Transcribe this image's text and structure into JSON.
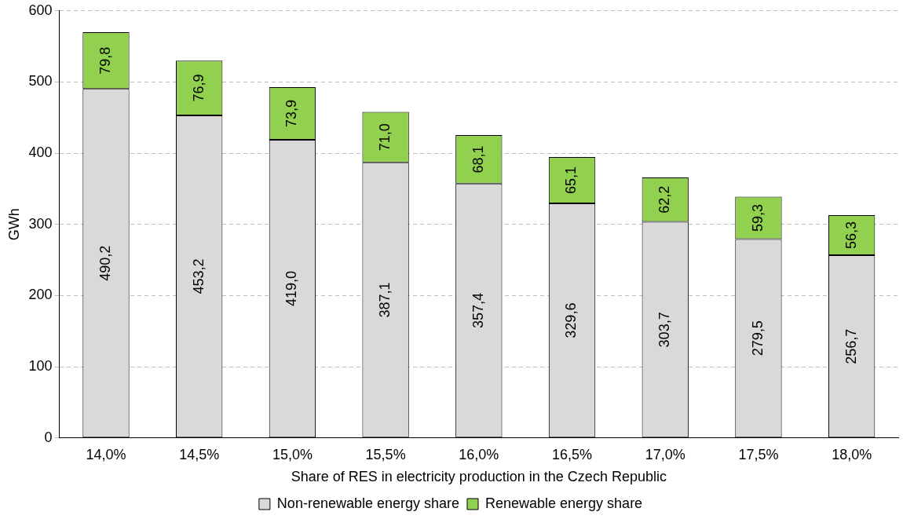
{
  "chart_data": {
    "type": "bar",
    "stacked": true,
    "xlabel": "Share of RES in electricity production in the Czech Republic",
    "ylabel": "GWh",
    "categories": [
      "14,0%",
      "14,5%",
      "15,0%",
      "15,5%",
      "16,0%",
      "16,5%",
      "17,0%",
      "17,5%",
      "18,0%"
    ],
    "series": [
      {
        "name": "Non-renewable energy share",
        "color": "#d9d9d9",
        "values": [
          490.2,
          453.2,
          419.0,
          387.1,
          357.4,
          329.6,
          303.7,
          279.5,
          256.7
        ],
        "value_labels": [
          "490,2",
          "453,2",
          "419,0",
          "387,1",
          "357,4",
          "329,6",
          "303,7",
          "279,5",
          "256,7"
        ]
      },
      {
        "name": "Renewable energy share",
        "color": "#92d050",
        "values": [
          79.8,
          76.9,
          73.9,
          71.0,
          68.1,
          65.1,
          62.2,
          59.3,
          56.3
        ],
        "value_labels": [
          "79,8",
          "76,9",
          "73,9",
          "71,0",
          "68,1",
          "65,1",
          "62,2",
          "59,3",
          "56,3"
        ]
      }
    ],
    "ylim": [
      0,
      600
    ],
    "yticks": [
      0,
      100,
      200,
      300,
      400,
      500,
      600
    ],
    "grid": "y",
    "legend": "bottom"
  }
}
